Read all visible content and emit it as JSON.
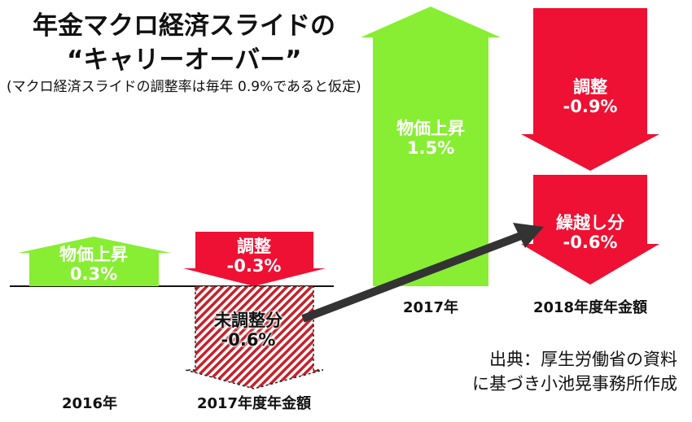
{
  "title": {
    "line1": "年金マクロ経済スライドの",
    "line2": "“キャリーオーバー”"
  },
  "subtitle": "(マクロ経済スライドの調整率は毎年 0.9%であると仮定)",
  "blocks": {
    "y2016_price": {
      "label": "物価上昇",
      "value": "0.3%"
    },
    "y2017_adjust": {
      "label": "調整",
      "value": "-0.3%"
    },
    "y2017_unadjusted": {
      "label": "未調整分",
      "value": "-0.6%"
    },
    "y2017_price": {
      "label": "物価上昇",
      "value": "1.5%"
    },
    "y2018_adjust": {
      "label": "調整",
      "value": "-0.9%"
    },
    "y2018_carry": {
      "label": "繰越し分",
      "value": "-0.6%"
    }
  },
  "years": {
    "y2016": "2016年",
    "y2017_pension": "2017年度年金額",
    "y2017": "2017年",
    "y2018_pension": "2018年度年金額"
  },
  "source": {
    "line1": "出典：厚生労働省の資料",
    "line2": "に基づき小池晃事務所作成"
  },
  "colors": {
    "green": "#88ee33",
    "red": "#ee1133",
    "arrow": "#333333"
  }
}
